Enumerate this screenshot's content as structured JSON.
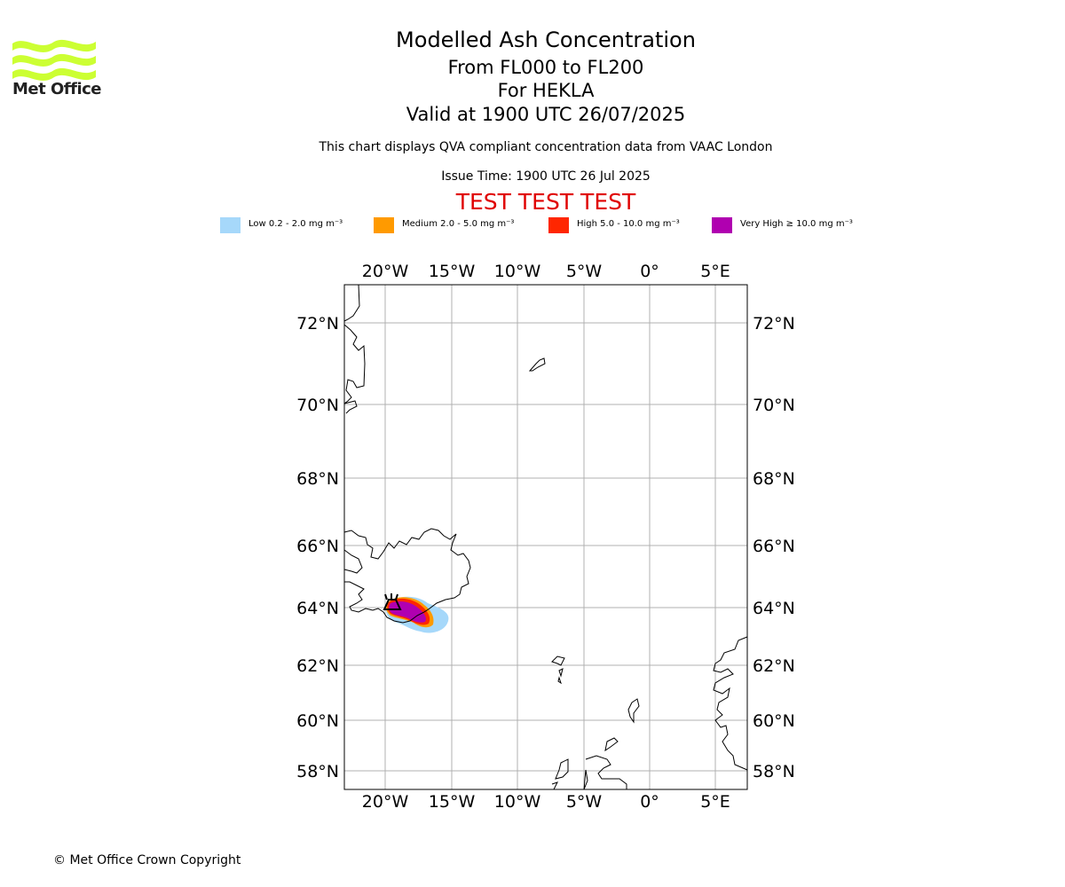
{
  "brand": {
    "name": "Met Office",
    "color": "#ccff33"
  },
  "header": {
    "title": "Modelled Ash Concentration",
    "levels": "From FL000 to FL200",
    "volcano": "For HEKLA",
    "valid": "Valid at 1900 UTC 26/07/2025",
    "description": "This chart displays QVA compliant concentration data from VAAC London",
    "issue": "Issue Time: 1900 UTC 26 Jul 2025",
    "banner": "TEST TEST TEST"
  },
  "legend": [
    {
      "label": "Low 0.2 - 2.0 mg m⁻³",
      "color": "#a6d8fa"
    },
    {
      "label": "Medium 2.0 - 5.0 mg m⁻³",
      "color": "#ff9a00"
    },
    {
      "label": "High 5.0 - 10.0 mg m⁻³",
      "color": "#ff2600"
    },
    {
      "label": "Very High  ≥  10.0 mg m⁻³",
      "color": "#b000b0"
    }
  ],
  "map": {
    "lon_ticks": [
      "20°W",
      "15°W",
      "10°W",
      "5°W",
      "0°",
      "5°E"
    ],
    "lat_ticks": [
      "72°N",
      "70°N",
      "68°N",
      "66°N",
      "64°N",
      "62°N",
      "60°N",
      "58°N"
    ],
    "volcano_marker": "volcano-icon"
  },
  "footer": {
    "copyright": "© Met Office Crown Copyright"
  }
}
